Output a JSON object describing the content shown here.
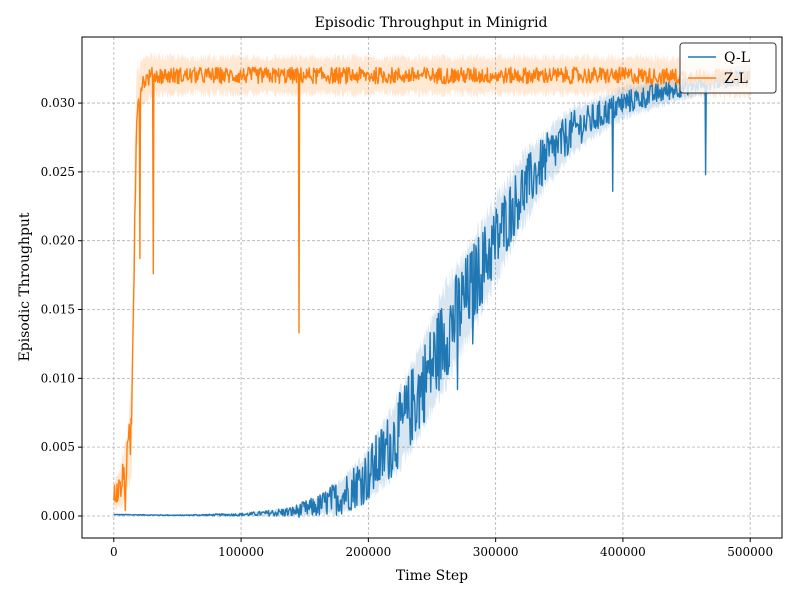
{
  "chart_data": {
    "type": "line",
    "title": "Episodic Throughput in Minigrid",
    "xlabel": "Time Step",
    "ylabel": "Episodic Throughput",
    "xlim": [
      -25000,
      525000
    ],
    "ylim": [
      -0.0016,
      0.0348
    ],
    "xticks": [
      0,
      100000,
      200000,
      300000,
      400000,
      500000
    ],
    "xtick_labels": [
      "0",
      "100000",
      "200000",
      "300000",
      "400000",
      "500000"
    ],
    "yticks": [
      0.0,
      0.005,
      0.01,
      0.015,
      0.02,
      0.025,
      0.03
    ],
    "ytick_labels": [
      "0.000",
      "0.005",
      "0.010",
      "0.015",
      "0.020",
      "0.025",
      "0.030"
    ],
    "grid": true,
    "legend_position": "top-right",
    "series": [
      {
        "name": "Q-L",
        "color": "#1f77b4",
        "band_color": "#1f77b4",
        "x": [
          0,
          50000,
          100000,
          120000,
          140000,
          160000,
          180000,
          200000,
          220000,
          240000,
          260000,
          280000,
          300000,
          320000,
          340000,
          360000,
          380000,
          400000,
          420000,
          440000,
          460000,
          480000,
          500000
        ],
        "y": [
          0.0001,
          5e-05,
          0.0001,
          0.0002,
          0.0003,
          0.0007,
          0.0015,
          0.003,
          0.0055,
          0.009,
          0.013,
          0.0165,
          0.02,
          0.0235,
          0.026,
          0.028,
          0.029,
          0.03,
          0.0305,
          0.031,
          0.0314,
          0.0317,
          0.032
        ],
        "band": [
          3e-05,
          3e-05,
          0.0001,
          0.0002,
          0.0003,
          0.0006,
          0.0012,
          0.0018,
          0.0025,
          0.003,
          0.0035,
          0.0032,
          0.003,
          0.0025,
          0.002,
          0.0016,
          0.0013,
          0.0011,
          0.001,
          0.0009,
          0.0008,
          0.0008,
          0.0008
        ],
        "noise": [
          3e-05,
          3e-05,
          0.0001,
          0.0002,
          0.0004,
          0.0008,
          0.0014,
          0.002,
          0.0026,
          0.003,
          0.0032,
          0.003,
          0.0026,
          0.0022,
          0.0018,
          0.0014,
          0.0011,
          0.0009,
          0.0008,
          0.0007,
          0.0006,
          0.0006,
          0.0006
        ],
        "dips": [
          {
            "x": 392000,
            "y": 0.0236
          },
          {
            "x": 465000,
            "y": 0.0248
          },
          {
            "x": 282000,
            "y": 0.0125
          },
          {
            "x": 270000,
            "y": 0.0092
          }
        ]
      },
      {
        "name": "Z-L",
        "color": "#ff7f0e",
        "band_color": "#ff7f0e",
        "x": [
          0,
          5000,
          10000,
          14000,
          16000,
          18000,
          22000,
          30000,
          50000,
          100000,
          200000,
          300000,
          400000,
          500000
        ],
        "y": [
          0.0015,
          0.002,
          0.0035,
          0.0065,
          0.02,
          0.0295,
          0.0315,
          0.032,
          0.032,
          0.032,
          0.032,
          0.032,
          0.032,
          0.0318
        ],
        "band": [
          0.001,
          0.0015,
          0.002,
          0.003,
          0.005,
          0.003,
          0.0015,
          0.0014,
          0.0013,
          0.0013,
          0.0013,
          0.0013,
          0.0013,
          0.0013
        ],
        "noise": [
          0.0008,
          0.001,
          0.0015,
          0.002,
          0.003,
          0.001,
          0.0006,
          0.0006,
          0.0006,
          0.0006,
          0.0006,
          0.0006,
          0.0006,
          0.0006
        ],
        "dips": [
          {
            "x": 20500,
            "y": 0.0187
          },
          {
            "x": 31000,
            "y": 0.0176
          },
          {
            "x": 145500,
            "y": 0.0133
          },
          {
            "x": 9000,
            "y": 0.0004
          }
        ]
      }
    ]
  }
}
